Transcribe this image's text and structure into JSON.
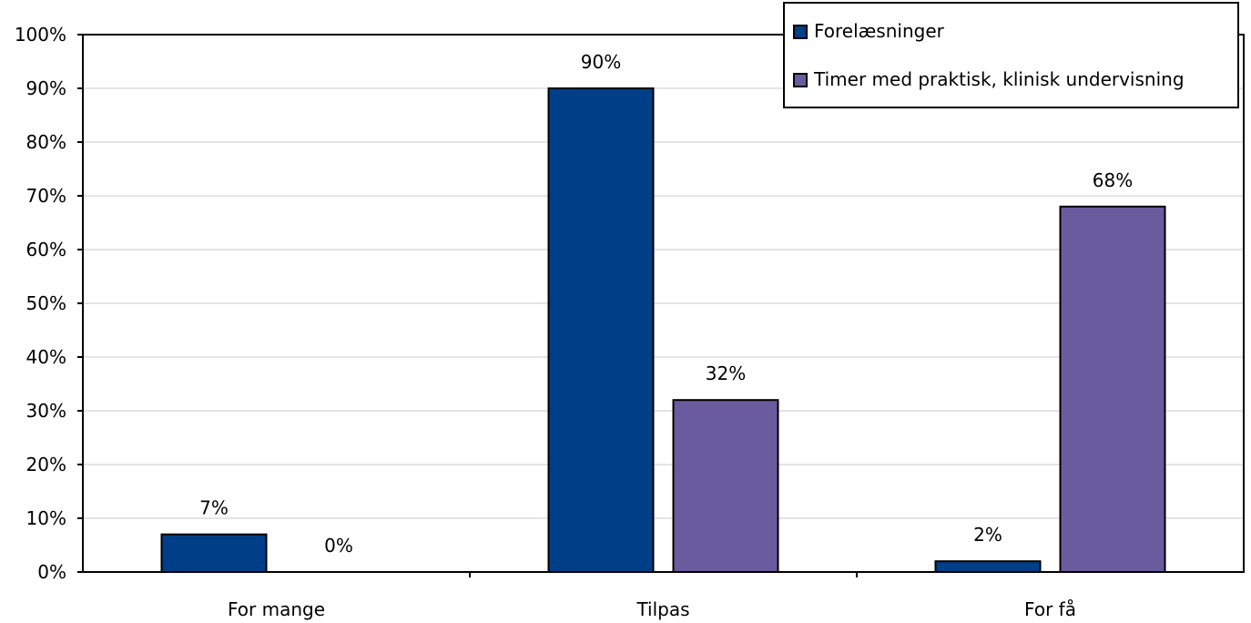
{
  "chart_data": {
    "type": "bar",
    "categories": [
      "For mange",
      "Tilpas",
      "For få"
    ],
    "series": [
      {
        "name": "Forelæsninger",
        "values": [
          7,
          90,
          2
        ],
        "labels": [
          "7%",
          "90%",
          "2%"
        ],
        "color": "#003f87"
      },
      {
        "name": "Timer med praktisk, klinisk undervisning",
        "values": [
          0,
          32,
          68
        ],
        "labels": [
          "0%",
          "32%",
          "68%"
        ],
        "color": "#6a5b9f"
      }
    ],
    "ylim": [
      0,
      100
    ],
    "yticks": [
      "0%",
      "10%",
      "20%",
      "30%",
      "40%",
      "50%",
      "60%",
      "70%",
      "80%",
      "90%",
      "100%"
    ],
    "title": "",
    "xlabel": "",
    "ylabel": "",
    "grid": true,
    "legend_position": "top-right"
  }
}
